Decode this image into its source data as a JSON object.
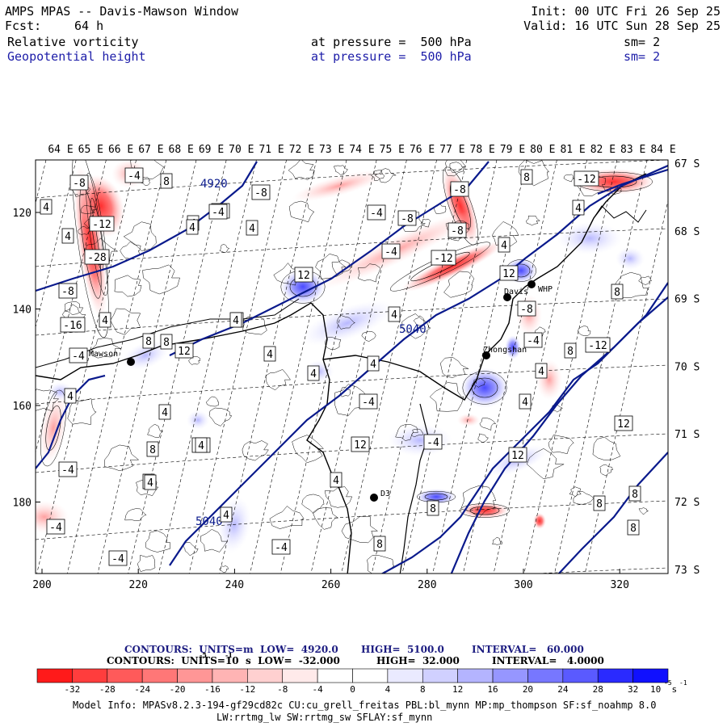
{
  "header": {
    "title": "AMPS MPAS -- Davis-Mawson Window",
    "init": "Init: 00 UTC Fri 26 Sep 25",
    "fcst_label": "Fcst:",
    "fcst_value": "64 h",
    "valid": "Valid: 16 UTC Sun 28 Sep 25",
    "field1": {
      "name": "Relative vorticity",
      "level": "at pressure =  500 hPa",
      "smooth": "sm= 2"
    },
    "field2": {
      "name": "Geopotential height",
      "level": "at pressure =  500 hPa",
      "smooth": "sm= 2"
    }
  },
  "map": {
    "top_lon_labels": [
      "64 E",
      "65 E",
      "66 E",
      "67 E",
      "68 E",
      "69 E",
      "70 E",
      "71 E",
      "72 E",
      "73 E",
      "74 E",
      "75 E",
      "76 E",
      "77 E",
      "78 E",
      "79 E",
      "80 E",
      "81 E",
      "82 E",
      "83 E",
      "84 E"
    ],
    "right_lat_labels": [
      "67 S",
      "68 S",
      "69 S",
      "70 S",
      "71 S",
      "72 S",
      "73 S"
    ],
    "left_y_labels": [
      "120",
      "140",
      "160",
      "180"
    ],
    "bottom_x_labels": [
      "200",
      "220",
      "240",
      "260",
      "280",
      "300",
      "320"
    ],
    "stations": [
      "Mawson",
      "Davis",
      "Zhongshan",
      "WHP",
      "D3"
    ],
    "height_labels": [
      "4920",
      "5040",
      "5040"
    ],
    "vort_labels": [
      "-8",
      "-4",
      "8",
      "4",
      "-12",
      "4",
      "4",
      "-4",
      "-8",
      "-4",
      "4",
      "-28",
      "-8",
      "4",
      "-16",
      "4",
      "-4",
      "8",
      "12",
      "4",
      "12",
      "4",
      "-8",
      "-4",
      "-12",
      "-8",
      "-8",
      "-4",
      "4",
      "-4",
      "12",
      "8",
      "8",
      "-12",
      "12",
      "8",
      "8",
      "4",
      "4",
      "4",
      "-4",
      "8",
      "4",
      "12",
      "-4",
      "4",
      "8",
      "4",
      "4",
      "12",
      "8",
      "8",
      "-12",
      "-8",
      "4",
      "8",
      "-4",
      "4",
      "4",
      "4",
      "4",
      "8",
      "4",
      "-4",
      "-4",
      "-4",
      "-4",
      "4"
    ]
  },
  "colors": {
    "navy_contour": "#0a1a8c",
    "label_blue": "#1c1ca8"
  },
  "colorbar": {
    "line1": {
      "title": "CONTOURS:  UNITS=m  LOW=  4920.0",
      "high": "HIGH=  5100.0",
      "interval": "INTERVAL=   60.000"
    },
    "line2": {
      "title": "CONTOURS:  UNITS=10  s  LOW=  -32.000",
      "high": "HIGH=  32.000",
      "interval": "INTERVAL=   4.0000"
    },
    "line2_exp": "-5",
    "line2_exp2": "-1",
    "tick_labels": [
      "-32",
      "-28",
      "-24",
      "-20",
      "-16",
      "-12",
      "-8",
      "-4",
      "0",
      "4",
      "8",
      "12",
      "16",
      "20",
      "24",
      "28",
      "32"
    ],
    "unit_label": "10  s",
    "unit_exp": "-5",
    "unit_exp2": "-1",
    "colors": [
      "#ff1a1a",
      "#ff3d3d",
      "#ff5a5a",
      "#ff7777",
      "#ff9696",
      "#ffb4b4",
      "#ffd0d0",
      "#ffeaea",
      "#ffffff",
      "#ffffff",
      "#eaeaff",
      "#d0d0ff",
      "#b4b4ff",
      "#9696ff",
      "#7777ff",
      "#5a5aff",
      "#2a2aff",
      "#1010ff"
    ]
  },
  "footer": {
    "line1": "Model Info: MPASv8.2.3-194-gf29cd82c CU:cu_grell_freitas PBL:bl_mynn MP:mp_thompson SF:sf_noahmp 8.0",
    "line2": "LW:rrtmg_lw SW:rrtmg_sw SFLAY:sf_mynn"
  }
}
